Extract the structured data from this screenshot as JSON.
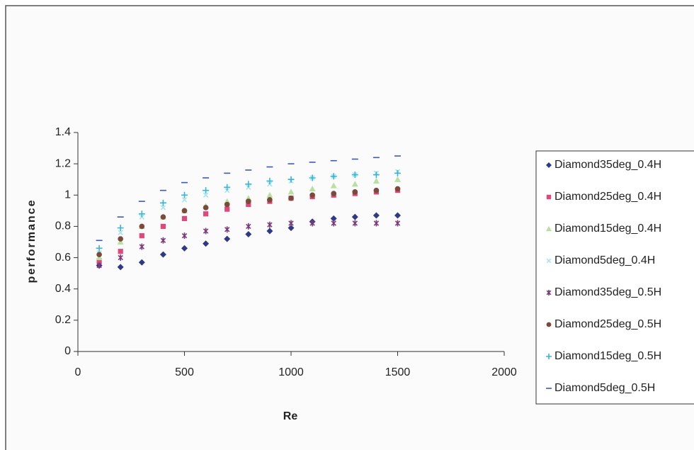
{
  "chart_data": {
    "type": "scatter",
    "x_label": "Re",
    "y_label": "performance",
    "x": [
      100,
      200,
      300,
      400,
      500,
      600,
      700,
      800,
      900,
      1000,
      1100,
      1200,
      1300,
      1400,
      1500
    ],
    "series": [
      {
        "name": "Diamond35deg_0.4H",
        "color": "#2e3a87",
        "marker": "diamond",
        "values": [
          0.55,
          0.54,
          0.57,
          0.62,
          0.66,
          0.69,
          0.72,
          0.75,
          0.77,
          0.79,
          0.83,
          0.85,
          0.86,
          0.87,
          0.87
        ]
      },
      {
        "name": "Diamond25deg_0.4H",
        "color": "#e0487c",
        "marker": "square",
        "values": [
          0.58,
          0.64,
          0.74,
          0.8,
          0.85,
          0.88,
          0.91,
          0.94,
          0.96,
          0.98,
          0.99,
          1.0,
          1.01,
          1.02,
          1.03
        ]
      },
      {
        "name": "Diamond15deg_0.4H",
        "color": "#b8e0a0",
        "marker": "triangle",
        "values": [
          0.6,
          0.7,
          0.8,
          0.86,
          0.9,
          0.93,
          0.96,
          0.98,
          1.0,
          1.02,
          1.04,
          1.06,
          1.07,
          1.09,
          1.1
        ]
      },
      {
        "name": "Diamond5deg_0.4H",
        "color": "#a8e4ec",
        "marker": "cross",
        "values": [
          0.63,
          0.76,
          0.86,
          0.92,
          0.97,
          1.0,
          1.03,
          1.05,
          1.07,
          1.09,
          1.11,
          1.12,
          1.13,
          1.14,
          1.15
        ]
      },
      {
        "name": "Diamond35deg_0.5H",
        "color": "#7a3a7a",
        "marker": "asterisk",
        "values": [
          0.55,
          0.6,
          0.67,
          0.71,
          0.74,
          0.77,
          0.78,
          0.8,
          0.81,
          0.82,
          0.82,
          0.82,
          0.82,
          0.82,
          0.82
        ]
      },
      {
        "name": "Diamond25deg_0.5H",
        "color": "#7a4a3a",
        "marker": "circle",
        "values": [
          0.62,
          0.72,
          0.8,
          0.86,
          0.9,
          0.92,
          0.94,
          0.96,
          0.97,
          0.98,
          1.0,
          1.01,
          1.02,
          1.03,
          1.04
        ]
      },
      {
        "name": "Diamond15deg_0.5H",
        "color": "#38b4d8",
        "marker": "plus",
        "values": [
          0.66,
          0.79,
          0.88,
          0.95,
          1.0,
          1.03,
          1.05,
          1.07,
          1.09,
          1.1,
          1.11,
          1.12,
          1.13,
          1.13,
          1.14
        ]
      },
      {
        "name": "Diamond5deg_0.5H",
        "color": "#3a5ab8",
        "marker": "dash",
        "values": [
          0.71,
          0.86,
          0.96,
          1.03,
          1.08,
          1.11,
          1.14,
          1.16,
          1.18,
          1.2,
          1.21,
          1.22,
          1.23,
          1.24,
          1.25
        ]
      }
    ],
    "xlim": [
      0,
      2000
    ],
    "xticks": [
      0,
      500,
      1000,
      1500,
      2000
    ],
    "ylim": [
      0,
      1.4
    ],
    "yticks": [
      0,
      0.2,
      0.4,
      0.6,
      0.8,
      1,
      1.2,
      1.4
    ],
    "legend": "right"
  }
}
